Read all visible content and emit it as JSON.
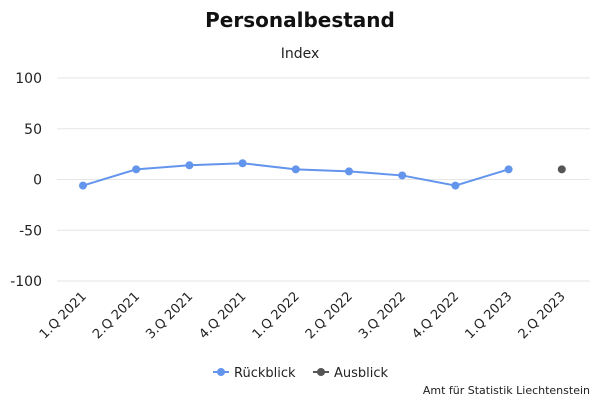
{
  "chart_data": {
    "type": "line",
    "title": "Personalbestand",
    "subtitle": "Index",
    "categories": [
      "1.Q 2021",
      "2.Q 2021",
      "3.Q 2021",
      "4.Q 2021",
      "1.Q 2022",
      "2.Q 2022",
      "3.Q 2022",
      "4.Q 2022",
      "1.Q 2023",
      "2.Q 2023"
    ],
    "series": [
      {
        "name": "Rückblick",
        "color": "#6495ED",
        "values": [
          -6,
          10,
          14,
          16,
          10,
          8,
          4,
          -6,
          10,
          null
        ]
      },
      {
        "name": "Ausblick",
        "color": "#555555",
        "values": [
          null,
          null,
          null,
          null,
          null,
          null,
          null,
          null,
          null,
          10
        ]
      }
    ],
    "y_ticks": [
      100,
      50,
      0,
      -50,
      -100
    ],
    "ylim": [
      -100,
      100
    ],
    "grid": true,
    "legend_position": "bottom-center",
    "credit": "Amt für Statistik Liechtenstein"
  }
}
